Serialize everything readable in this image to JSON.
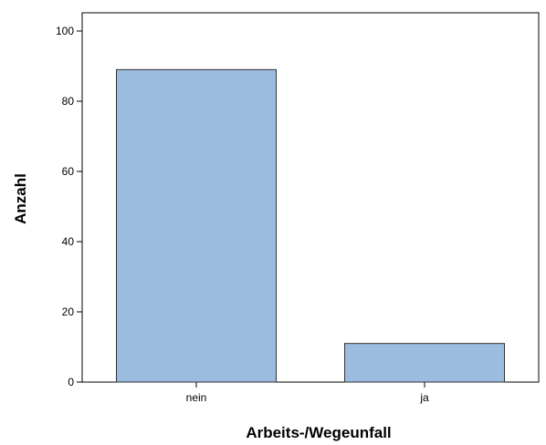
{
  "chart_data": {
    "type": "bar",
    "categories": [
      "nein",
      "ja"
    ],
    "values": [
      89,
      11
    ],
    "xlabel": "Arbeits-/Wegeunfall",
    "ylabel": "Anzahl",
    "ylim": [
      0,
      100
    ],
    "yticks": [
      0,
      20,
      40,
      60,
      80,
      100
    ],
    "ytick_labels": [
      "0",
      "20",
      "40",
      "60",
      "80",
      "100"
    ],
    "grid": false,
    "bar_color": "#9bbcde",
    "bar_edge_color": "#333333"
  }
}
